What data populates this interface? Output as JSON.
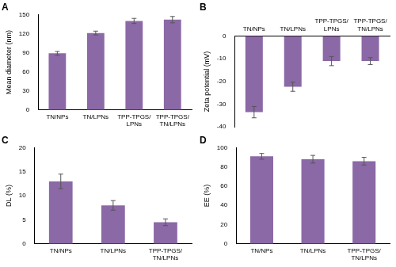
{
  "chart_data": [
    {
      "type": "bar",
      "title": "A",
      "y_label": "Mean diameter (nm)",
      "categories": [
        "TN/NPs",
        "TN/LPNs",
        "TPP-TPGS/LPNs",
        "TPP-TPGS/TN/LPNs"
      ],
      "values": [
        89,
        121,
        140,
        142
      ],
      "errors": [
        3,
        3,
        4,
        5
      ],
      "color": "#8b68a6",
      "ylim": [
        0,
        150
      ],
      "yticks": [
        0,
        30,
        60,
        90,
        120,
        150
      ],
      "grid": false
    },
    {
      "type": "bar",
      "title": "B",
      "y_label": "Zeta potential (mV)",
      "categories": [
        "TN/NPs",
        "TN/LPNs",
        "TPP-TPGS/LPNs",
        "TPP-TPGS/TN/LPNs"
      ],
      "values": [
        -33.5,
        -22.3,
        -11,
        -11
      ],
      "errors": [
        2.5,
        2,
        2,
        1.5
      ],
      "color": "#8b68a6",
      "ylim": [
        -40,
        0
      ],
      "yticks": [
        -40,
        -30,
        -20,
        -10,
        0
      ],
      "grid": false
    },
    {
      "type": "bar",
      "title": "C",
      "y_label": "DL (%)",
      "categories": [
        "TN/NPs",
        "TN/LPNs",
        "TPP-TPGS/TN/LPNs"
      ],
      "values": [
        13,
        8,
        4.5
      ],
      "errors": [
        1.5,
        1,
        0.7
      ],
      "color": "#8b68a6",
      "ylim": [
        0,
        20
      ],
      "yticks": [
        0,
        5,
        10,
        15,
        20
      ],
      "grid": false
    },
    {
      "type": "bar",
      "title": "D",
      "y_label": "EE (%)",
      "categories": [
        "TN/NPs",
        "TN/LPNs",
        "TPP-TPGS/TN/LPNs"
      ],
      "values": [
        91,
        88,
        86
      ],
      "errors": [
        3,
        4,
        4
      ],
      "color": "#8b68a6",
      "ylim": [
        0,
        100
      ],
      "yticks": [
        0,
        20,
        40,
        60,
        80,
        100
      ],
      "grid": false
    }
  ]
}
